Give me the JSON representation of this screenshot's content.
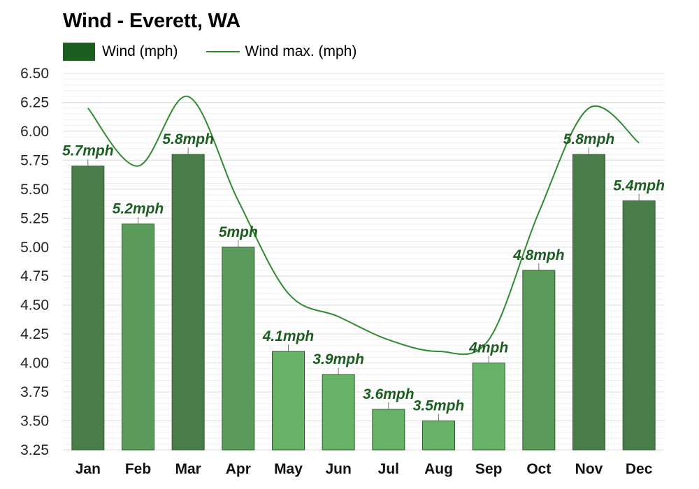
{
  "title": "Wind - Everett, WA",
  "legend": {
    "bar_label": "Wind (mph)",
    "line_label": "Wind max. (mph)"
  },
  "colors": {
    "line": "#2e8b2e",
    "label": "#1b5e20",
    "legend_bar": "#1b5e20",
    "bar_dark": "#4a7d4a",
    "bar_mid": "#5a9a5a",
    "bar_light": "#66b266"
  },
  "chart_data": {
    "type": "bar",
    "categories": [
      "Jan",
      "Feb",
      "Mar",
      "Apr",
      "May",
      "Jun",
      "Jul",
      "Aug",
      "Sep",
      "Oct",
      "Nov",
      "Dec"
    ],
    "series": [
      {
        "name": "Wind (mph)",
        "type": "bar",
        "values": [
          5.7,
          5.2,
          5.8,
          5.0,
          4.1,
          3.9,
          3.6,
          3.5,
          4.0,
          4.8,
          5.8,
          5.4
        ],
        "labels": [
          "5.7mph",
          "5.2mph",
          "5.8mph",
          "5mph",
          "4.1mph",
          "3.9mph",
          "3.6mph",
          "3.5mph",
          "4mph",
          "4.8mph",
          "5.8mph",
          "5.4mph"
        ]
      },
      {
        "name": "Wind max. (mph)",
        "type": "line",
        "values": [
          6.2,
          5.7,
          6.3,
          5.4,
          4.6,
          4.4,
          4.2,
          4.1,
          4.2,
          5.3,
          6.2,
          5.9
        ]
      }
    ],
    "ylim": [
      3.25,
      6.5
    ],
    "yticks": [
      "3.25",
      "3.50",
      "3.75",
      "4.00",
      "4.25",
      "4.50",
      "4.75",
      "5.00",
      "5.25",
      "5.50",
      "5.75",
      "6.00",
      "6.25",
      "6.50"
    ],
    "xlabel": "",
    "ylabel": "",
    "grid": true,
    "legend_position": "top-left"
  }
}
